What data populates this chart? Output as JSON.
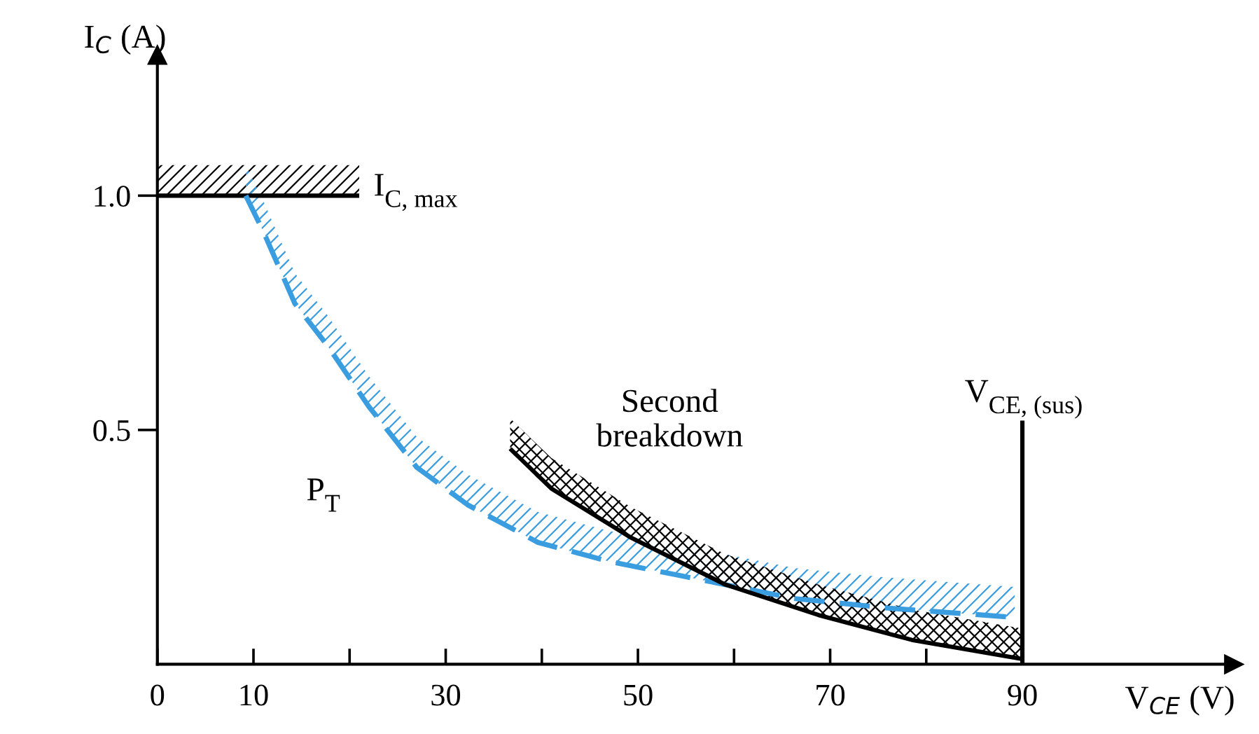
{
  "chart_data": {
    "type": "line",
    "xlabel": "V$_{CE}$ (V)",
    "ylabel": "I$_{C}$ (A)",
    "xlim": [
      0,
      112
    ],
    "ylim": [
      0,
      1.3
    ],
    "xticks": [
      0,
      10,
      {
        "value": 20,
        "label": null
      },
      30,
      {
        "value": 40,
        "label": null
      },
      50,
      {
        "value": 60,
        "label": null
      },
      70,
      {
        "value": 80,
        "label": null
      },
      90
    ],
    "yticks": [
      0.5,
      {
        "value": 1.0,
        "label": "1.0"
      }
    ],
    "grid": false,
    "legend": false,
    "series": [
      {
        "name": "I$_{C, max}$",
        "color": "#000000",
        "line_style": "solid",
        "x": [
          0,
          21
        ],
        "values": [
          1.0,
          1.0
        ]
      },
      {
        "name": "P$_{T}$",
        "color": "#3a9de0",
        "line_style": "dashed",
        "x": [
          9.2,
          11.1,
          14.3,
          17.7,
          22,
          27,
          32.3,
          39.6,
          46.9,
          54.2,
          66.4,
          76,
          89.2
        ],
        "values": [
          1.0,
          0.92,
          0.77,
          0.68,
          0.55,
          0.42,
          0.34,
          0.26,
          0.22,
          0.19,
          0.14,
          0.12,
          0.1
        ]
      },
      {
        "name": "Second breakdown",
        "color": "#000000",
        "line_style": "solid",
        "x": [
          36.7,
          41,
          49.3,
          59.1,
          68.8,
          78.5,
          89.8
        ],
        "values": [
          0.46,
          0.375,
          0.27,
          0.17,
          0.105,
          0.052,
          0.012
        ]
      },
      {
        "name": "V$_{CE, (sus)}$",
        "color": "#000000",
        "line_style": "solid",
        "x": [
          90,
          90
        ],
        "values": [
          0,
          0.52
        ]
      }
    ]
  }
}
